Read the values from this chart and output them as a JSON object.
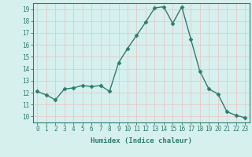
{
  "x": [
    0,
    1,
    2,
    3,
    4,
    5,
    6,
    7,
    8,
    9,
    10,
    11,
    12,
    13,
    14,
    15,
    16,
    17,
    18,
    19,
    20,
    21,
    22,
    23
  ],
  "y": [
    12.1,
    11.8,
    11.4,
    12.3,
    12.4,
    12.6,
    12.5,
    12.6,
    12.1,
    14.5,
    15.7,
    16.8,
    17.9,
    19.1,
    19.2,
    17.8,
    19.2,
    16.5,
    13.8,
    12.3,
    11.9,
    10.4,
    10.1,
    9.9
  ],
  "line_color": "#2e7d6e",
  "bg_color": "#d6f0ee",
  "grid_color": "#e8c8c8",
  "spine_color": "#2e7d6e",
  "xlabel": "Humidex (Indice chaleur)",
  "xlim": [
    -0.5,
    23.5
  ],
  "ylim": [
    9.5,
    19.5
  ],
  "yticks": [
    10,
    11,
    12,
    13,
    14,
    15,
    16,
    17,
    18,
    19
  ],
  "xticks": [
    0,
    1,
    2,
    3,
    4,
    5,
    6,
    7,
    8,
    9,
    10,
    11,
    12,
    13,
    14,
    15,
    16,
    17,
    18,
    19,
    20,
    21,
    22,
    23
  ],
  "marker": "D",
  "marker_size": 2.5,
  "line_width": 1.0,
  "xlabel_fontsize": 6.5,
  "tick_fontsize": 5.5
}
